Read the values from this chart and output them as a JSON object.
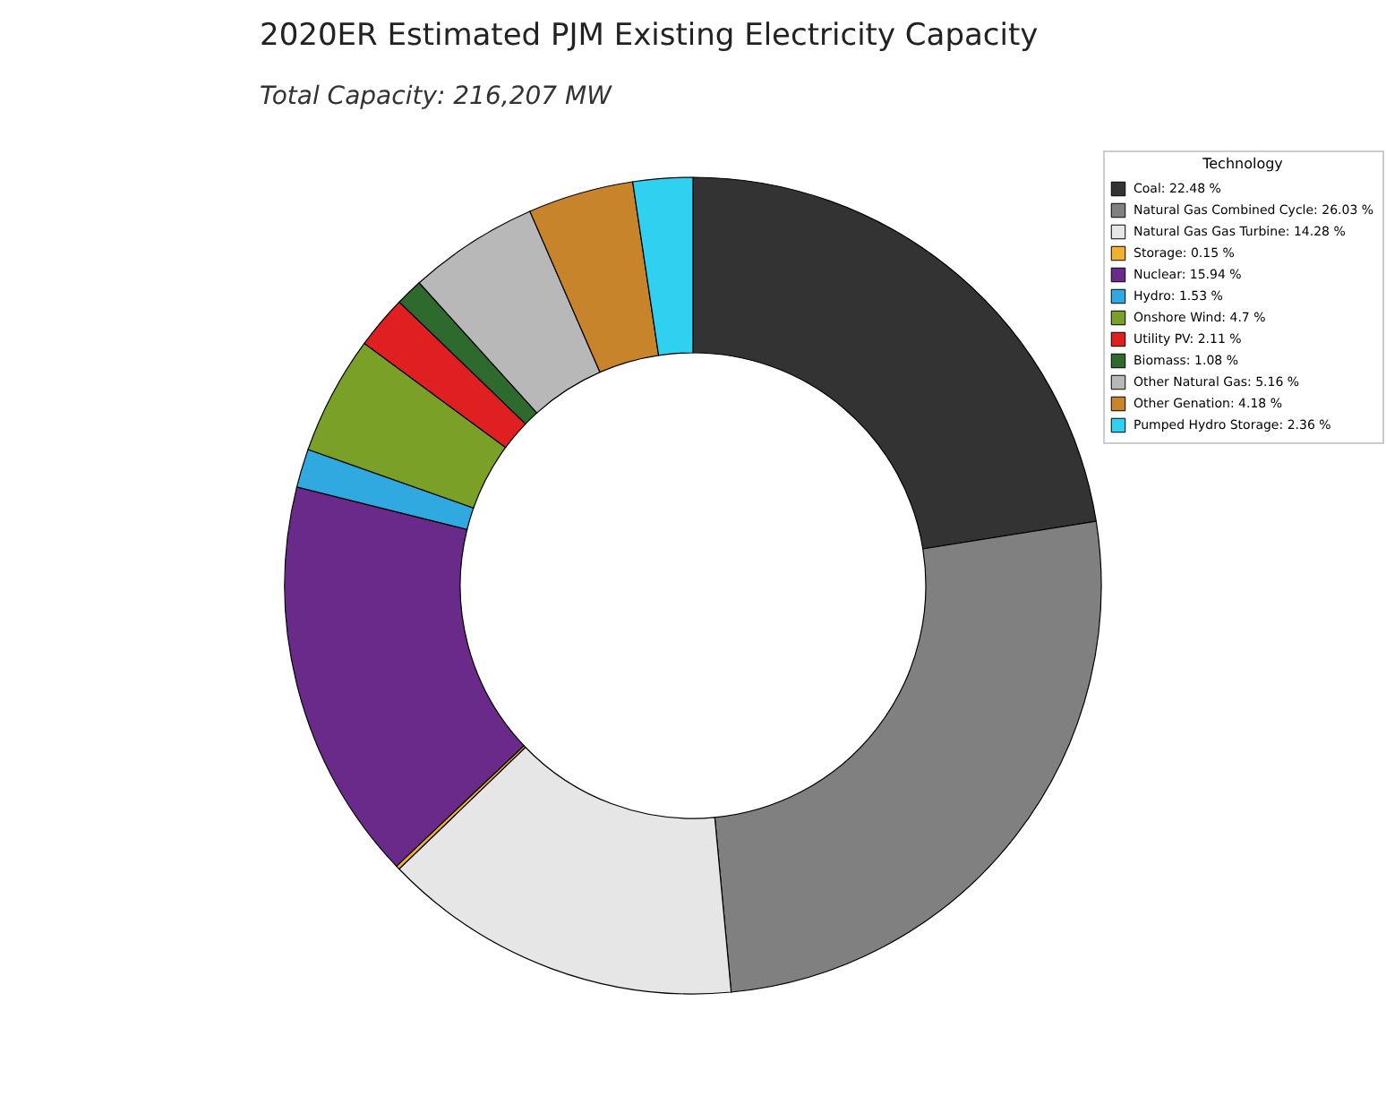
{
  "chart_data": {
    "type": "donut",
    "title": "2020ER Estimated PJM Existing Electricity Capacity",
    "subtitle": "Total Capacity: 216,207 MW",
    "legend_title": "Technology",
    "legend": "top right",
    "categories": [
      "Coal: 22.48 %",
      "Natural Gas Combined Cycle: 26.03 %",
      "Natural Gas Gas Turbine: 14.28 %",
      "Storage: 0.15 %",
      "Nuclear: 15.94 %",
      "Hydro: 1.53 %",
      "Onshore Wind: 4.7 %",
      "Utility PV: 2.11 %",
      "Biomass: 1.08 %",
      "Other Natural Gas: 5.16 %",
      "Other Genation: 4.18 %",
      "Pumped Hydro Storage: 2.36 %"
    ],
    "values": [
      22.48,
      26.03,
      14.28,
      0.15,
      15.94,
      1.53,
      4.7,
      2.11,
      1.08,
      5.16,
      4.18,
      2.36
    ],
    "colors": [
      "#333333",
      "#808080",
      "#e6e6e6",
      "#f0b030",
      "#6a2a8a",
      "#30a8e0",
      "#7aa028",
      "#e02020",
      "#2e6a2e",
      "#b8b8b8",
      "#c8842a",
      "#30d0f0"
    ]
  }
}
